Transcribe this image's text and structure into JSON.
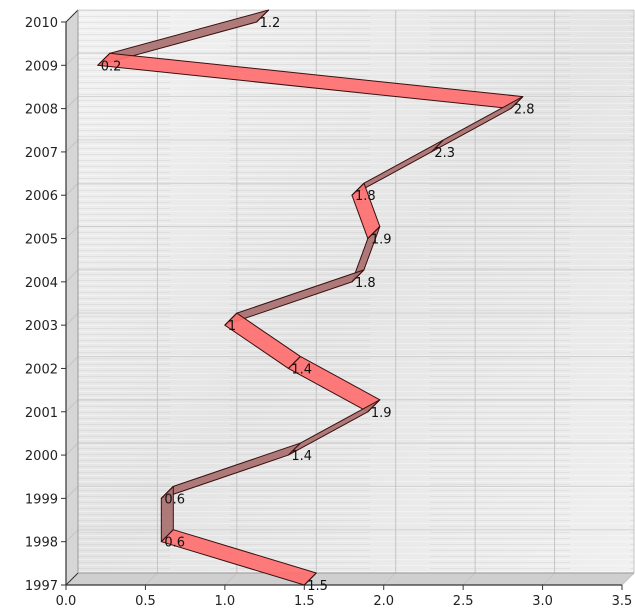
{
  "chart_data": {
    "type": "line",
    "orientation": "horizontal-values",
    "title": "",
    "xlabel": "",
    "ylabel": "",
    "y_categories": [
      "1997",
      "1998",
      "1999",
      "2000",
      "2001",
      "2002",
      "2003",
      "2004",
      "2005",
      "2006",
      "2007",
      "2008",
      "2009",
      "2010"
    ],
    "values": [
      1.5,
      0.6,
      0.6,
      1.4,
      1.9,
      1.4,
      1,
      1.8,
      1.9,
      1.8,
      2.3,
      2.8,
      0.2,
      1.2
    ],
    "value_labels": [
      "1.5",
      "0.6",
      "0.6",
      "1.4",
      "1.9",
      "1.4",
      "1",
      "1.8",
      "1.9",
      "1.8",
      "2.3",
      "2.8",
      "0.2",
      "1.2"
    ],
    "xlim": [
      0,
      3.5
    ],
    "x_ticks": [
      "0.0",
      "0.5",
      "1.0",
      "1.5",
      "2.0",
      "2.5",
      "3.0",
      "3.5"
    ],
    "grid": true,
    "legend": "none",
    "style": "3d-ribbon",
    "colors": {
      "ribbon_front": "#ff7070",
      "ribbon_top": "#a87070",
      "ribbon_edge": "#3a1010",
      "plot_background": "#e6e6e6",
      "grid": "#c4c4c4",
      "axis": "#333333"
    }
  }
}
